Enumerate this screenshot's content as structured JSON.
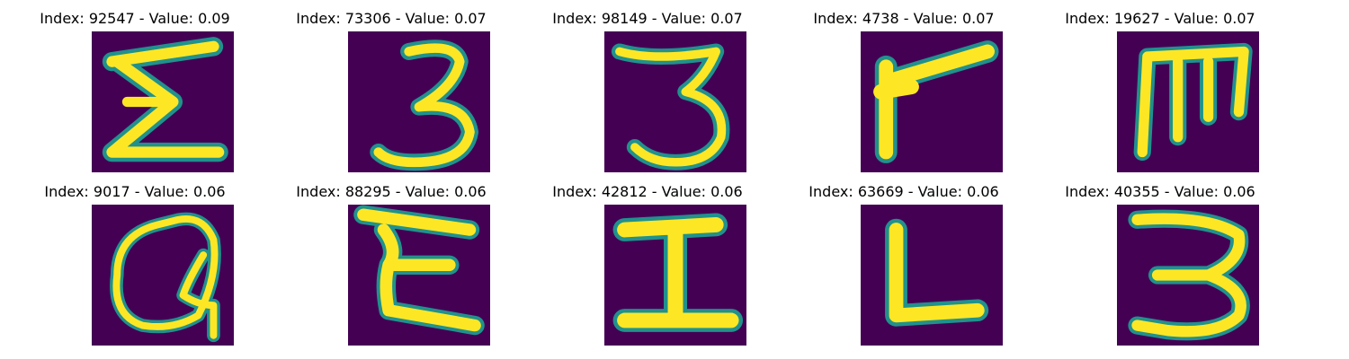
{
  "figure": {
    "background": "#440154",
    "stroke_colors": [
      "#fde725",
      "#3fbc73",
      "#21918c"
    ]
  },
  "panels": [
    {
      "title": "Index: 92547 - Value: 0.09",
      "glyph": "sigma-like E"
    },
    {
      "title": "Index: 73306 - Value: 0.07",
      "glyph": "digit 3"
    },
    {
      "title": "Index: 98149 - Value: 0.07",
      "glyph": "digit 3"
    },
    {
      "title": "Index: 4738 - Value: 0.07",
      "glyph": "letter F / r shape"
    },
    {
      "title": "Index: 19627 - Value: 0.07",
      "glyph": "rotated m / E"
    },
    {
      "title": "Index: 9017 - Value: 0.06",
      "glyph": "letter a / q"
    },
    {
      "title": "Index: 88295 - Value: 0.06",
      "glyph": "letter E"
    },
    {
      "title": "Index: 42812 - Value: 0.06",
      "glyph": "letter I"
    },
    {
      "title": "Index: 63669 - Value: 0.06",
      "glyph": "letter L"
    },
    {
      "title": "Index: 40355 - Value: 0.06",
      "glyph": "digit 3"
    }
  ]
}
